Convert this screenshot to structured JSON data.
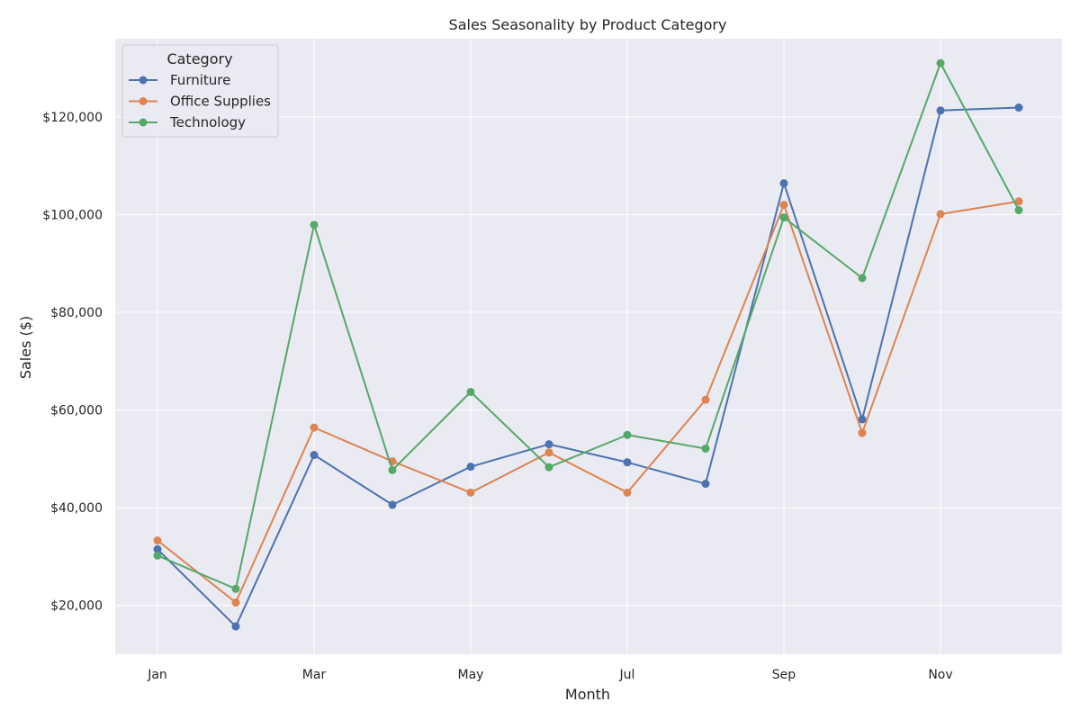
{
  "chart_data": {
    "type": "line",
    "title": "Sales Seasonality by Product Category",
    "xlabel": "Month",
    "ylabel": "Sales ($)",
    "x": [
      "Jan",
      "Feb",
      "Mar",
      "Apr",
      "May",
      "Jun",
      "Jul",
      "Aug",
      "Sep",
      "Oct",
      "Nov",
      "Dec"
    ],
    "x_tick_labels": [
      "Jan",
      "Mar",
      "May",
      "Jul",
      "Sep",
      "Nov"
    ],
    "y_ticks": [
      20000,
      40000,
      60000,
      80000,
      100000,
      120000
    ],
    "y_tick_labels": [
      "$20,000",
      "$40,000",
      "$60,000",
      "$80,000",
      "$100,000",
      "$120,000"
    ],
    "ylim": [
      10000,
      136000
    ],
    "grid": true,
    "legend_title": "Category",
    "legend_position": "top-left",
    "series": [
      {
        "name": "Furniture",
        "color": "#4c72b0",
        "values": [
          31500,
          15700,
          50800,
          40600,
          48400,
          53000,
          49300,
          44900,
          106400,
          58100,
          121300,
          121900
        ]
      },
      {
        "name": "Office Supplies",
        "color": "#dd8452",
        "values": [
          33300,
          20600,
          56400,
          49500,
          43100,
          51300,
          43100,
          62100,
          102000,
          55300,
          100100,
          102700
        ]
      },
      {
        "name": "Technology",
        "color": "#55a868",
        "values": [
          30200,
          23400,
          97900,
          47700,
          63700,
          48300,
          54900,
          52100,
          99400,
          87000,
          131000,
          100900
        ]
      }
    ]
  }
}
